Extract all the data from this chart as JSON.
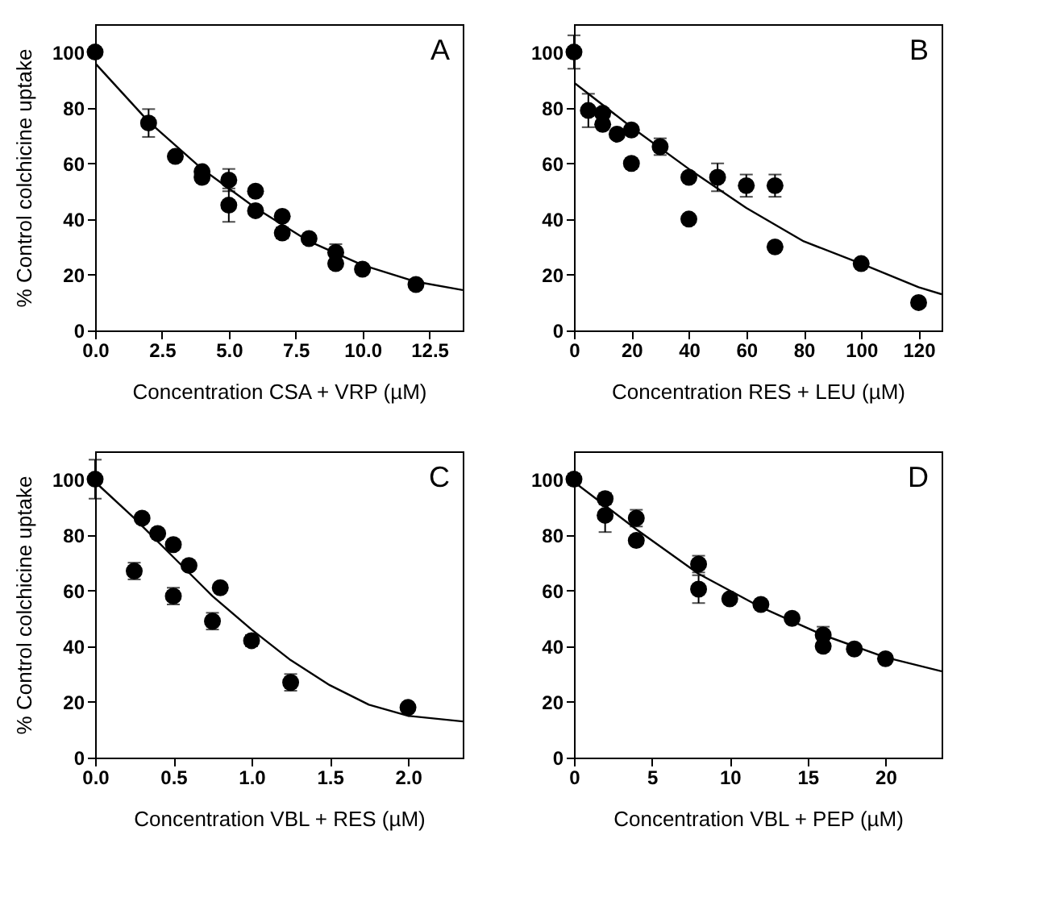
{
  "chart_data": [
    {
      "type": "scatter",
      "xlabel": "Concentration CSA + VRP (µM)",
      "ylabel": "% Control colchicine uptake",
      "annotations": [
        "A"
      ],
      "xlim": [
        0,
        13.75
      ],
      "ylim": [
        0,
        110
      ],
      "xticks": [
        {
          "value": 0,
          "label": "0.0"
        },
        2.5,
        {
          "value": 5,
          "label": "5.0"
        },
        7.5,
        {
          "value": 10,
          "label": "10.0"
        },
        12.5
      ],
      "yticks": [
        0,
        20,
        40,
        60,
        80,
        100
      ],
      "grid": false,
      "marker": "circle",
      "series": [
        {
          "type": "line",
          "color": "#000000",
          "marker": "none",
          "x": [
            0,
            2,
            4,
            6,
            8,
            10,
            12,
            13.75
          ],
          "values": [
            96,
            75,
            58,
            44,
            32,
            23.5,
            17.5,
            14.5
          ]
        },
        {
          "type": "scatter",
          "color": "#000000",
          "x": [
            0,
            2,
            3,
            4,
            4,
            5,
            5,
            6,
            6,
            7,
            7,
            8,
            9,
            9,
            10,
            12
          ],
          "values": [
            100,
            74.5,
            62.5,
            57,
            55,
            54,
            45,
            50,
            43,
            41,
            35,
            33,
            28,
            24,
            22,
            16.5
          ],
          "errors": [
            null,
            5,
            null,
            null,
            null,
            4,
            6,
            null,
            null,
            null,
            2,
            null,
            3,
            null,
            null,
            null
          ]
        }
      ]
    },
    {
      "type": "scatter",
      "xlabel": "Concentration RES + LEU (µM)",
      "annotations": [
        "B"
      ],
      "xlim": [
        0,
        128
      ],
      "ylim": [
        0,
        110
      ],
      "xticks": [
        0,
        20,
        40,
        60,
        80,
        100,
        120
      ],
      "yticks": [
        0,
        20,
        40,
        60,
        80,
        100
      ],
      "grid": false,
      "marker": "circle",
      "series": [
        {
          "type": "line",
          "color": "#000000",
          "marker": "none",
          "x": [
            0,
            20,
            40,
            60,
            80,
            100,
            120,
            128
          ],
          "values": [
            89,
            73,
            58,
            44,
            32,
            24,
            15.5,
            13
          ]
        },
        {
          "type": "scatter",
          "color": "#000000",
          "x": [
            0,
            5,
            10,
            10,
            15,
            20,
            20,
            30,
            40,
            40,
            50,
            60,
            70,
            70,
            100,
            120
          ],
          "values": [
            100,
            79,
            78,
            74,
            70.5,
            72,
            60,
            66,
            55,
            40,
            55,
            52,
            52,
            30,
            24,
            10
          ],
          "errors": [
            6,
            6,
            null,
            null,
            null,
            null,
            null,
            3,
            null,
            null,
            5,
            4,
            4,
            null,
            null,
            null
          ]
        }
      ]
    },
    {
      "type": "scatter",
      "xlabel": "Concentration VBL + RES (µM)",
      "ylabel": "% Control colchicine uptake",
      "annotations": [
        "C"
      ],
      "xlim": [
        0,
        2.35
      ],
      "ylim": [
        0,
        110
      ],
      "xticks": [
        {
          "value": 0,
          "label": "0.0"
        },
        0.5,
        {
          "value": 1,
          "label": "1.0"
        },
        1.5,
        {
          "value": 2,
          "label": "2.0"
        }
      ],
      "yticks": [
        0,
        20,
        40,
        60,
        80,
        100
      ],
      "grid": false,
      "marker": "circle",
      "series": [
        {
          "type": "line",
          "color": "#000000",
          "marker": "none",
          "x": [
            0,
            0.25,
            0.5,
            0.75,
            1.0,
            1.25,
            1.5,
            1.75,
            2.0,
            2.35
          ],
          "values": [
            99,
            86,
            72,
            58,
            46,
            35,
            26,
            19,
            15,
            13
          ]
        },
        {
          "type": "scatter",
          "color": "#000000",
          "x": [
            0,
            0.25,
            0.3,
            0.4,
            0.5,
            0.5,
            0.6,
            0.75,
            0.8,
            1.0,
            1.25,
            2.0
          ],
          "values": [
            100,
            67,
            86,
            80.5,
            76.5,
            58,
            69,
            49,
            61,
            42,
            27,
            18
          ],
          "errors": [
            7,
            3,
            null,
            null,
            null,
            3,
            null,
            3,
            null,
            2,
            3,
            null
          ]
        }
      ]
    },
    {
      "type": "scatter",
      "xlabel": "Concentration VBL + PEP (µM)",
      "annotations": [
        "D"
      ],
      "xlim": [
        0,
        23.6
      ],
      "ylim": [
        0,
        110
      ],
      "xticks": [
        0,
        5,
        10,
        15,
        20
      ],
      "yticks": [
        0,
        20,
        40,
        60,
        80,
        100
      ],
      "grid": false,
      "marker": "circle",
      "series": [
        {
          "type": "line",
          "color": "#000000",
          "marker": "none",
          "x": [
            0,
            4,
            8,
            12,
            16,
            20,
            23.6
          ],
          "values": [
            99,
            82,
            66,
            54,
            44,
            36,
            31
          ]
        },
        {
          "type": "scatter",
          "color": "#000000",
          "x": [
            0,
            2,
            2,
            4,
            4,
            8,
            8,
            10,
            12,
            14,
            16,
            16,
            18,
            20
          ],
          "values": [
            100,
            93,
            87,
            86,
            78,
            69.5,
            60.5,
            57,
            55,
            50,
            44,
            40,
            39,
            35.5
          ],
          "errors": [
            2,
            2,
            6,
            3,
            null,
            3,
            5,
            null,
            null,
            null,
            3,
            null,
            null,
            null
          ]
        }
      ]
    }
  ]
}
